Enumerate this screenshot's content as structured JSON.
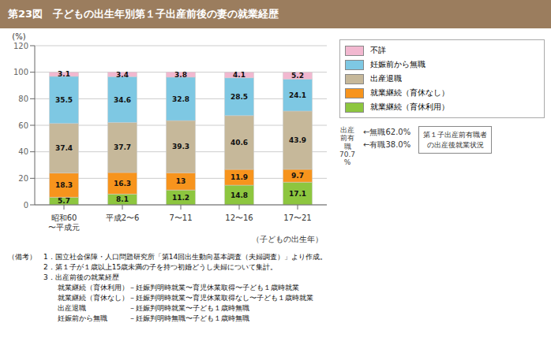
{
  "chart_data": {
    "type": "bar",
    "title": "第23図　子どもの出生年別第１子出産前後の妻の就業経歴",
    "categories": [
      "昭和60\n〜平成元",
      "平成2〜6",
      "7〜11",
      "12〜16",
      "17〜21"
    ],
    "xlabel": "（子どもの出生年）",
    "ylabel": "(%)",
    "series": [
      {
        "name": "就業継続（育休利用）",
        "color": "#8dc63f",
        "values": [
          5.7,
          8.1,
          11.2,
          14.8,
          17.1
        ]
      },
      {
        "name": "就業継続（育休なし）",
        "color": "#f7941d",
        "values": [
          18.3,
          16.3,
          13.0,
          11.9,
          9.7
        ]
      },
      {
        "name": "出産退職",
        "color": "#c6b89a",
        "values": [
          37.4,
          37.7,
          39.3,
          40.6,
          43.9
        ]
      },
      {
        "name": "妊娠前から無職",
        "color": "#7ec8e3",
        "values": [
          35.5,
          34.6,
          32.8,
          28.5,
          24.1
        ]
      },
      {
        "name": "不詳",
        "color": "#f2b8d0",
        "values": [
          3.1,
          3.4,
          3.8,
          4.1,
          5.2
        ]
      }
    ],
    "stacked": true,
    "data_labels": true,
    "grid": true,
    "legend": "right",
    "ylim": [
      0,
      120
    ],
    "yticks": [
      0,
      20,
      40,
      60,
      80,
      100,
      120
    ],
    "annotations": [
      "出産\n前有\n職\n70.7\n%",
      "←無職62.0%",
      "←有職38.0%",
      "第１子出産前有職者\nの出産後就業状況"
    ],
    "notes": [
      "（備考）　1．国立社会保障・人口問題研究所「第14回出生動向基本調査（夫婦調査）」より作成。",
      "　　　　　2．第１子が１歳以上15歳未満の子を持つ初婚どうし夫婦について集計。",
      "　　　　　3．出産前後の就業経歴",
      "　　　　　　　就業継続（育休利用）－妊娠判明時就業〜育児休業取得〜子ども１歳時就業",
      "　　　　　　　就業継続（育休なし）－妊娠判明時就業〜育児休業取得なし〜子ども１歳時就業",
      "　　　　　　　出産退職　　　　　　－妊娠判明時就業〜子ども１歳時無職",
      "　　　　　　　妊娠前から無職　　　－妊娠判明時無職〜子ども１歳時無職"
    ]
  }
}
